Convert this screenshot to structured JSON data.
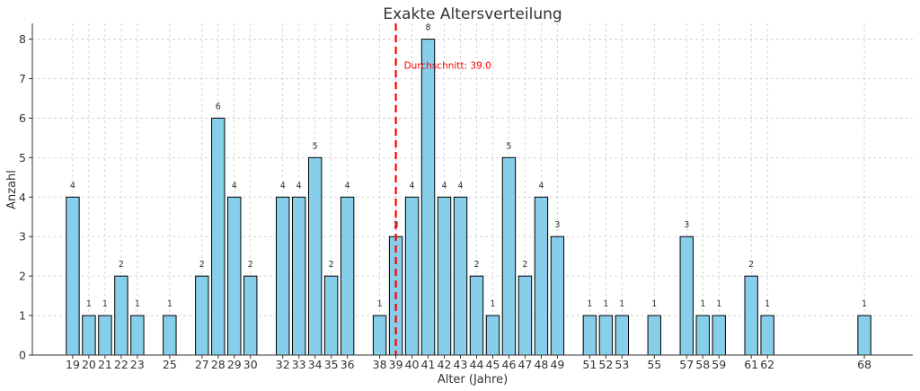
{
  "chart_data": {
    "type": "bar",
    "title": "Exakte Altersverteilung",
    "xlabel": "Alter (Jahre)",
    "ylabel": "Anzahl",
    "ylim": [
      0,
      8.4
    ],
    "yticks": [
      0,
      1,
      2,
      3,
      4,
      5,
      6,
      7,
      8
    ],
    "grid": true,
    "bar_color": "#87ceeb",
    "bar_edge_color": "#000000",
    "x": [
      19,
      20,
      21,
      22,
      23,
      25,
      27,
      28,
      29,
      30,
      32,
      33,
      34,
      35,
      36,
      38,
      39,
      40,
      41,
      42,
      43,
      44,
      45,
      46,
      47,
      48,
      49,
      51,
      52,
      53,
      55,
      57,
      58,
      59,
      61,
      62,
      68
    ],
    "values": [
      4,
      1,
      1,
      2,
      1,
      1,
      2,
      6,
      4,
      2,
      4,
      4,
      5,
      2,
      4,
      1,
      3,
      4,
      8,
      4,
      4,
      2,
      1,
      5,
      2,
      4,
      3,
      1,
      1,
      1,
      1,
      3,
      1,
      1,
      2,
      1,
      1
    ],
    "mean": {
      "value": 39.0,
      "label": "Durchschnitt: 39.0",
      "color": "#ff0000"
    }
  }
}
